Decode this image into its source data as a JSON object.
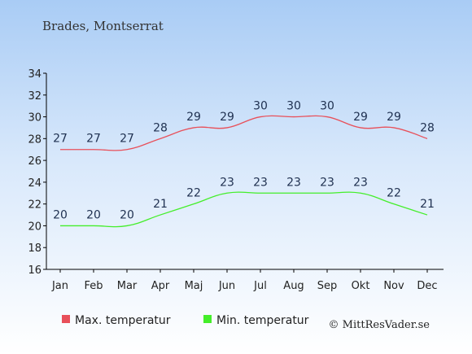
{
  "chart_data": {
    "type": "line",
    "title": "Brades, Montserrat",
    "categories": [
      "Jan",
      "Feb",
      "Mar",
      "Apr",
      "Maj",
      "Jun",
      "Jul",
      "Aug",
      "Sep",
      "Okt",
      "Nov",
      "Dec"
    ],
    "ylim": [
      16,
      34
    ],
    "yticks": [
      16,
      18,
      20,
      22,
      24,
      26,
      28,
      30,
      32,
      34
    ],
    "grid": false,
    "legend_position": "bottom-left",
    "series": [
      {
        "name": "Max. temperatur",
        "color": "#e8505a",
        "values": [
          27,
          27,
          27,
          28,
          29,
          29,
          30,
          30,
          30,
          29,
          29,
          28
        ]
      },
      {
        "name": "Min. temperatur",
        "color": "#44ee2a",
        "values": [
          20,
          20,
          20,
          21,
          22,
          23,
          23,
          23,
          23,
          23,
          22,
          21
        ]
      }
    ]
  },
  "credit": "© MittResVader.se"
}
